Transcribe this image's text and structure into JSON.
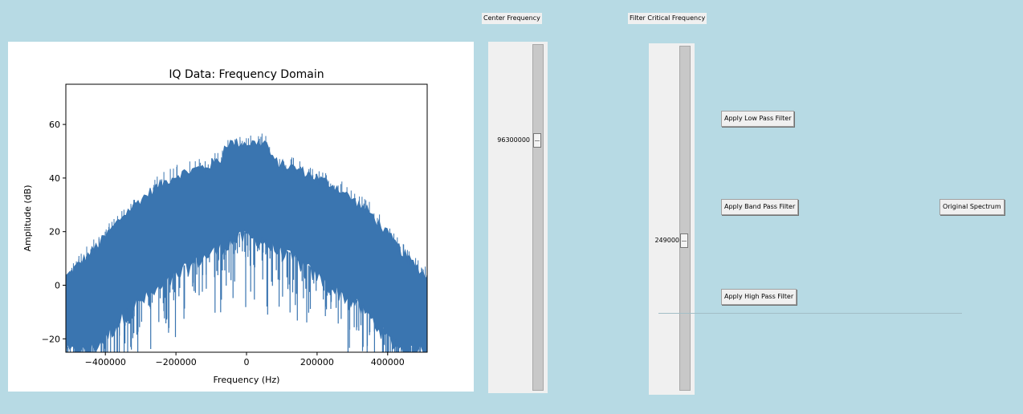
{
  "labels": {
    "center_frequency": "Center Frequency",
    "filter_critical_frequency": "Filter Critical Frequency"
  },
  "sliders": {
    "center_frequency": {
      "value": "96300000",
      "level": 0.27
    },
    "filter_critical_frequency": {
      "value": "249000",
      "level": 0.57
    }
  },
  "buttons": {
    "low_pass": "Apply Low Pass Filter",
    "band_pass": "Apply Band Pass Filter",
    "high_pass": "Apply High Pass Filter",
    "original": "Original Spectrum"
  },
  "chart_data": {
    "type": "line",
    "title": "IQ Data: Frequency Domain",
    "xlabel": "Frequency (Hz)",
    "ylabel": "Amplitude (dB)",
    "xlim": [
      -512000,
      512000
    ],
    "ylim": [
      -25,
      75
    ],
    "xticks": [
      -400000,
      -200000,
      0,
      200000,
      400000
    ],
    "xtick_labels": [
      "−400000",
      "−200000",
      "0",
      "200000",
      "400000"
    ],
    "yticks": [
      -20,
      0,
      20,
      40,
      60
    ],
    "ytick_labels": [
      "−20",
      "0",
      "20",
      "40",
      "60"
    ],
    "grid": false,
    "color": "#3a75b0",
    "series": [
      {
        "x": [
          -512000,
          -450000,
          -400000,
          -350000,
          -300000,
          -250000,
          -200000,
          -150000,
          -100000,
          -70000,
          -60000,
          -30000,
          0,
          30000,
          60000,
          70000,
          100000,
          150000,
          200000,
          250000,
          300000,
          350000,
          400000,
          450000,
          512000
        ],
        "upper": [
          3,
          11,
          18,
          26,
          32,
          37,
          41,
          43,
          45,
          47,
          53,
          53,
          53,
          53,
          53,
          47,
          45,
          43,
          40,
          37,
          32,
          27,
          19,
          11,
          3
        ],
        "lower": [
          -25,
          -25,
          -20,
          -12,
          -6,
          -2,
          3,
          8,
          12,
          14,
          15,
          17,
          18,
          17,
          15,
          14,
          12,
          8,
          3,
          -2,
          -6,
          -12,
          -20,
          -25,
          -25
        ]
      }
    ]
  }
}
